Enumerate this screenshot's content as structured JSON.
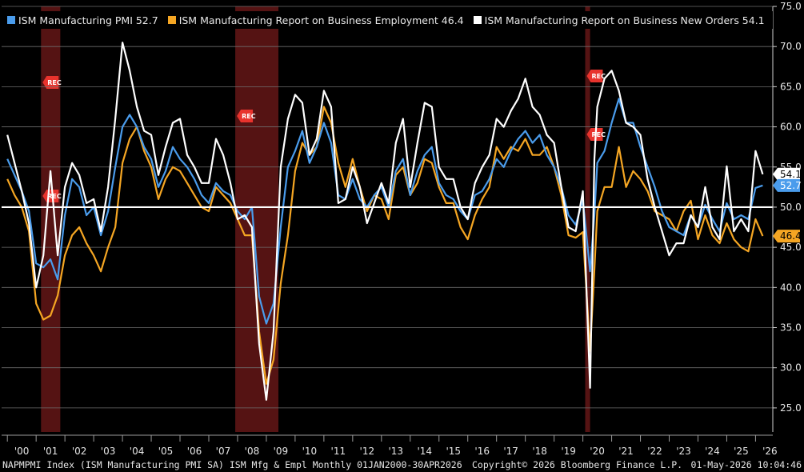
{
  "legend": {
    "pmi_label": "ISM Manufacturing PMI 52.7",
    "emp_label": "ISM Manufacturing Report on Business Employment 46.4",
    "no_label": "ISM Manufacturing Report on Business New Orders 54.1"
  },
  "footer": {
    "left": "NAPMPMI Index (ISM Manufacturing PMI SA) ISM Mfg & Empl Monthly 01JAN2000-30APR2026",
    "middle": "Copyright© 2026 Bloomberg Finance L.P.",
    "right": "01-May-2026 10:04:46"
  },
  "chart_data": {
    "type": "line",
    "xlabel": "",
    "ylabel": "",
    "ylim": [
      22,
      75
    ],
    "yticks": [
      "25.0",
      "30.0",
      "35.0",
      "40.0",
      "45.0",
      "50.0",
      "55.0",
      "60.0",
      "65.0",
      "70.0",
      "75.0"
    ],
    "xticks": [
      "'00",
      "'01",
      "'02",
      "'03",
      "'04",
      "'05",
      "'06",
      "'07",
      "'08",
      "'09",
      "'10",
      "'11",
      "'12",
      "'13",
      "'14",
      "'15",
      "'16",
      "'17",
      "'18",
      "'19",
      "'20",
      "'21",
      "'22",
      "'23",
      "'24",
      "'25",
      "'26"
    ],
    "reference_line": 50,
    "grid": true,
    "recessions": [
      {
        "start": 2001.17,
        "end": 2001.84,
        "label": "REC"
      },
      {
        "start": 2007.92,
        "end": 2009.42,
        "label": "REC"
      },
      {
        "start": 2020.08,
        "end": 2020.25,
        "label": "REC"
      }
    ],
    "last_value_labels": [
      {
        "text": "54.1",
        "value": 54.1,
        "color": "#ffffff",
        "text_color": "#000000"
      },
      {
        "text": "52.7",
        "value": 52.7,
        "color": "#4a9cec",
        "text_color": "#ffffff"
      },
      {
        "text": "46.4",
        "value": 46.4,
        "color": "#f5a623",
        "text_color": "#000000"
      }
    ],
    "series": [
      {
        "name": "ISM Manufacturing PMI",
        "color": "#4a9cec",
        "x": [
          2000.0,
          2000.25,
          2000.5,
          2000.75,
          2001.0,
          2001.25,
          2001.5,
          2001.75,
          2002.0,
          2002.25,
          2002.5,
          2002.75,
          2003.0,
          2003.25,
          2003.5,
          2003.75,
          2004.0,
          2004.25,
          2004.5,
          2004.75,
          2005.0,
          2005.25,
          2005.5,
          2005.75,
          2006.0,
          2006.25,
          2006.5,
          2006.75,
          2007.0,
          2007.25,
          2007.5,
          2007.75,
          2008.0,
          2008.25,
          2008.5,
          2008.75,
          2009.0,
          2009.25,
          2009.5,
          2009.75,
          2010.0,
          2010.25,
          2010.5,
          2010.75,
          2011.0,
          2011.25,
          2011.5,
          2011.75,
          2012.0,
          2012.25,
          2012.5,
          2012.75,
          2013.0,
          2013.25,
          2013.5,
          2013.75,
          2014.0,
          2014.25,
          2014.5,
          2014.75,
          2015.0,
          2015.25,
          2015.5,
          2015.75,
          2016.0,
          2016.25,
          2016.5,
          2016.75,
          2017.0,
          2017.25,
          2017.5,
          2017.75,
          2018.0,
          2018.25,
          2018.5,
          2018.75,
          2019.0,
          2019.25,
          2019.5,
          2019.75,
          2020.0,
          2020.25,
          2020.4,
          2020.5,
          2020.75,
          2021.0,
          2021.25,
          2021.5,
          2021.75,
          2022.0,
          2022.25,
          2022.5,
          2022.75,
          2023.0,
          2023.25,
          2023.5,
          2023.75,
          2024.0,
          2024.25,
          2024.5,
          2024.75,
          2025.0,
          2025.25,
          2025.5,
          2025.75,
          2026.0,
          2026.25
        ],
        "values": [
          56.0,
          54.0,
          52.0,
          49.5,
          43.0,
          42.5,
          43.5,
          41.0,
          49.0,
          53.5,
          52.5,
          49.0,
          50.0,
          46.5,
          49.5,
          55.0,
          60.0,
          61.5,
          60.0,
          57.5,
          56.0,
          52.5,
          54.5,
          57.5,
          56.0,
          55.0,
          53.5,
          51.5,
          50.5,
          53.0,
          52.0,
          51.5,
          49.5,
          48.5,
          50.0,
          38.9,
          35.5,
          38.0,
          47.5,
          55.0,
          57.0,
          59.5,
          55.5,
          57.5,
          60.5,
          58.0,
          51.5,
          51.0,
          53.5,
          51.0,
          50.0,
          51.5,
          52.5,
          50.0,
          54.5,
          56.0,
          51.5,
          54.5,
          56.5,
          57.5,
          53.0,
          51.5,
          51.0,
          49.5,
          48.5,
          51.5,
          52.0,
          53.5,
          56.0,
          55.0,
          57.0,
          58.5,
          59.5,
          58.0,
          59.0,
          56.5,
          55.0,
          52.5,
          49.0,
          47.8,
          50.9,
          42.0,
          49.0,
          55.5,
          57.0,
          60.5,
          63.5,
          60.5,
          60.5,
          57.5,
          55.0,
          52.5,
          49.5,
          47.5,
          47.0,
          46.5,
          49.0,
          47.5,
          50.3,
          48.5,
          47.0,
          50.5,
          48.5,
          49.0,
          48.5,
          52.4,
          52.7
        ]
      },
      {
        "name": "ISM Manufacturing Report on Business Employment",
        "color": "#f5a623",
        "x": [
          2000.0,
          2000.25,
          2000.5,
          2000.75,
          2001.0,
          2001.25,
          2001.5,
          2001.75,
          2002.0,
          2002.25,
          2002.5,
          2002.75,
          2003.0,
          2003.25,
          2003.5,
          2003.75,
          2004.0,
          2004.25,
          2004.5,
          2004.75,
          2005.0,
          2005.25,
          2005.5,
          2005.75,
          2006.0,
          2006.25,
          2006.5,
          2006.75,
          2007.0,
          2007.25,
          2007.5,
          2007.75,
          2008.0,
          2008.25,
          2008.5,
          2008.75,
          2009.0,
          2009.25,
          2009.5,
          2009.75,
          2010.0,
          2010.25,
          2010.5,
          2010.75,
          2011.0,
          2011.25,
          2011.5,
          2011.75,
          2012.0,
          2012.25,
          2012.5,
          2012.75,
          2013.0,
          2013.25,
          2013.5,
          2013.75,
          2014.0,
          2014.25,
          2014.5,
          2014.75,
          2015.0,
          2015.25,
          2015.5,
          2015.75,
          2016.0,
          2016.25,
          2016.5,
          2016.75,
          2017.0,
          2017.25,
          2017.5,
          2017.75,
          2018.0,
          2018.25,
          2018.5,
          2018.75,
          2019.0,
          2019.25,
          2019.5,
          2019.75,
          2020.0,
          2020.25,
          2020.4,
          2020.5,
          2020.75,
          2021.0,
          2021.25,
          2021.5,
          2021.75,
          2022.0,
          2022.25,
          2022.5,
          2022.75,
          2023.0,
          2023.25,
          2023.5,
          2023.75,
          2024.0,
          2024.25,
          2024.5,
          2024.75,
          2025.0,
          2025.25,
          2025.5,
          2025.75,
          2026.0,
          2026.25
        ],
        "values": [
          53.5,
          51.5,
          50.0,
          47.0,
          38.0,
          36.0,
          36.5,
          39.0,
          44.0,
          46.5,
          47.5,
          45.5,
          44.0,
          42.0,
          45.0,
          47.5,
          55.5,
          58.5,
          60.0,
          57.0,
          55.0,
          51.0,
          53.5,
          55.0,
          54.5,
          53.0,
          51.5,
          50.0,
          49.5,
          52.5,
          51.5,
          50.5,
          48.5,
          46.5,
          46.5,
          34.5,
          28.0,
          31.0,
          40.5,
          46.5,
          54.5,
          58.0,
          56.5,
          57.5,
          62.5,
          60.5,
          55.5,
          52.5,
          56.0,
          52.5,
          49.5,
          51.5,
          51.0,
          48.5,
          54.0,
          55.0,
          51.5,
          53.0,
          56.0,
          55.5,
          52.5,
          50.5,
          50.5,
          47.5,
          46.0,
          49.0,
          51.0,
          52.5,
          57.5,
          56.0,
          57.5,
          57.0,
          58.5,
          56.5,
          56.5,
          57.5,
          55.0,
          51.5,
          46.5,
          46.2,
          46.9,
          32.1,
          42.2,
          49.5,
          52.5,
          52.5,
          57.5,
          52.5,
          54.5,
          53.5,
          52.0,
          49.5,
          49.0,
          48.5,
          47.0,
          49.5,
          50.8,
          46.0,
          49.0,
          46.5,
          45.5,
          48.0,
          46.0,
          45.0,
          44.5,
          48.5,
          46.4
        ]
      },
      {
        "name": "ISM Manufacturing Report on Business New Orders",
        "color": "#ffffff",
        "x": [
          2000.0,
          2000.25,
          2000.5,
          2000.75,
          2001.0,
          2001.25,
          2001.5,
          2001.75,
          2002.0,
          2002.25,
          2002.5,
          2002.75,
          2003.0,
          2003.25,
          2003.5,
          2003.75,
          2004.0,
          2004.25,
          2004.5,
          2004.75,
          2005.0,
          2005.25,
          2005.5,
          2005.75,
          2006.0,
          2006.25,
          2006.5,
          2006.75,
          2007.0,
          2007.25,
          2007.5,
          2007.75,
          2008.0,
          2008.25,
          2008.5,
          2008.75,
          2009.0,
          2009.25,
          2009.5,
          2009.75,
          2010.0,
          2010.25,
          2010.5,
          2010.75,
          2011.0,
          2011.25,
          2011.5,
          2011.75,
          2012.0,
          2012.25,
          2012.5,
          2012.75,
          2013.0,
          2013.25,
          2013.5,
          2013.75,
          2014.0,
          2014.25,
          2014.5,
          2014.75,
          2015.0,
          2015.25,
          2015.5,
          2015.75,
          2016.0,
          2016.25,
          2016.5,
          2016.75,
          2017.0,
          2017.25,
          2017.5,
          2017.75,
          2018.0,
          2018.25,
          2018.5,
          2018.75,
          2019.0,
          2019.25,
          2019.5,
          2019.75,
          2020.0,
          2020.25,
          2020.4,
          2020.5,
          2020.75,
          2021.0,
          2021.25,
          2021.5,
          2021.75,
          2022.0,
          2022.25,
          2022.5,
          2022.75,
          2023.0,
          2023.25,
          2023.5,
          2023.75,
          2024.0,
          2024.25,
          2024.5,
          2024.75,
          2025.0,
          2025.25,
          2025.5,
          2025.75,
          2026.0,
          2026.25
        ],
        "values": [
          59.0,
          55.5,
          52.0,
          48.0,
          40.0,
          44.0,
          54.5,
          44.0,
          52.5,
          55.5,
          54.0,
          50.5,
          51.0,
          47.0,
          52.5,
          61.0,
          70.5,
          67.0,
          62.5,
          59.5,
          59.0,
          54.0,
          57.5,
          60.5,
          61.0,
          56.5,
          55.0,
          53.0,
          53.0,
          58.5,
          56.5,
          53.0,
          48.5,
          49.0,
          47.5,
          33.0,
          26.0,
          34.5,
          55.0,
          61.0,
          64.0,
          63.0,
          56.5,
          58.5,
          64.5,
          62.5,
          50.5,
          51.0,
          55.0,
          52.5,
          48.0,
          50.5,
          53.0,
          50.5,
          58.0,
          61.0,
          52.5,
          58.0,
          63.0,
          62.5,
          55.0,
          53.5,
          53.5,
          50.0,
          48.5,
          53.0,
          55.0,
          56.5,
          61.0,
          60.0,
          62.0,
          63.5,
          66.0,
          62.5,
          61.5,
          59.0,
          58.0,
          52.5,
          47.5,
          47.0,
          52.0,
          27.5,
          56.0,
          62.5,
          66.0,
          67.0,
          64.5,
          60.5,
          60.0,
          59.0,
          53.5,
          50.0,
          47.0,
          44.0,
          45.5,
          45.5,
          49.0,
          47.5,
          52.5,
          47.5,
          46.0,
          55.1,
          47.0,
          48.5,
          47.0,
          57.0,
          54.1
        ]
      }
    ]
  }
}
